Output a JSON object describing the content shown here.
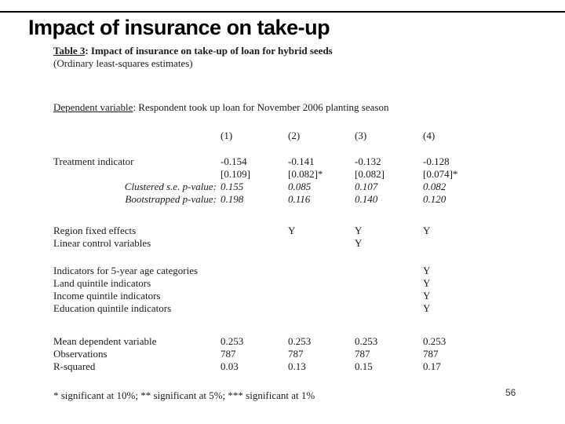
{
  "slide": {
    "title": "Impact of insurance on take-up",
    "page_number": "56",
    "accent_color": "#000000",
    "background_color": "#ffffff"
  },
  "table": {
    "caption_prefix": "Table 3",
    "caption_rest": ": Impact of insurance on take-up of loan for hybrid seeds",
    "caption_sub": "(Ordinary least-squares estimates)",
    "dep_var_prefix": "Dependent variable",
    "dep_var_rest": ": Respondent took up loan for November 2006 planting season",
    "columns": [
      "(1)",
      "(2)",
      "(3)",
      "(4)"
    ],
    "rows": [
      {
        "label": "Treatment indicator",
        "cells": [
          "-0.154",
          "-0.141",
          "-0.132",
          "-0.128"
        ]
      },
      {
        "label": "",
        "cells": [
          "[0.109]",
          "[0.082]*",
          "[0.082]",
          "[0.074]*"
        ]
      },
      {
        "label": "Clustered s.e. p-value:",
        "cells": [
          "0.155",
          "0.085",
          "0.107",
          "0.082"
        ]
      },
      {
        "label": "Bootstrapped p-value:",
        "cells": [
          "0.198",
          "0.116",
          "0.140",
          "0.120"
        ]
      },
      {
        "label": "Region fixed effects",
        "cells": [
          "",
          "Y",
          "Y",
          "Y"
        ]
      },
      {
        "label": "Linear control variables",
        "cells": [
          "",
          "",
          "Y",
          ""
        ]
      },
      {
        "label": "Indicators for 5-year age categories",
        "cells": [
          "",
          "",
          "",
          "Y"
        ]
      },
      {
        "label": "Land quintile indicators",
        "cells": [
          "",
          "",
          "",
          "Y"
        ]
      },
      {
        "label": "Income quintile indicators",
        "cells": [
          "",
          "",
          "",
          "Y"
        ]
      },
      {
        "label": "Education quintile indicators",
        "cells": [
          "",
          "",
          "",
          "Y"
        ]
      },
      {
        "label": "Mean dependent variable",
        "cells": [
          "0.253",
          "0.253",
          "0.253",
          "0.253"
        ]
      },
      {
        "label": "Observations",
        "cells": [
          "787",
          "787",
          "787",
          "787"
        ]
      },
      {
        "label": "R-squared",
        "cells": [
          "0.03",
          "0.13",
          "0.15",
          "0.17"
        ]
      }
    ],
    "footnote": "* significant at 10%; ** significant at 5%; *** significant at 1%"
  }
}
